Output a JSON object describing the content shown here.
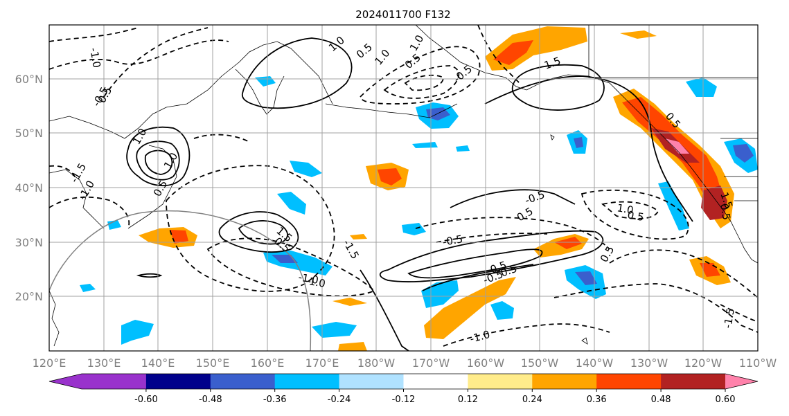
{
  "title": "2024011700 F132",
  "map": {
    "lat_labels": [
      "60°N",
      "50°N",
      "40°N",
      "30°N",
      "20°N"
    ],
    "lon_labels": [
      "120°E",
      "130°E",
      "140°E",
      "150°E",
      "160°E",
      "170°E",
      "180°W",
      "170°W",
      "160°W",
      "150°W",
      "140°W",
      "130°W",
      "120°W",
      "110°W"
    ],
    "contour_labels": [
      "-1.0",
      "0.5",
      "1.0",
      "0.5",
      "1.0",
      "1.0",
      "0.5",
      "1.0",
      "0.5",
      "1.0",
      "-0.5",
      "1.5",
      "0.5",
      "1.5",
      "0.5",
      "-1.5",
      "-1.0",
      "-0.5",
      "1.5",
      "0.5",
      "-1.0",
      "-1.0",
      "-1.5",
      "-0.5",
      "0.5",
      "-0.5",
      "0.5",
      "0.5",
      "0.5",
      "1.0",
      "0.5",
      "-0.5",
      "-1.0",
      "-1.5"
    ],
    "colors": {
      "land_border": "#000000",
      "grid": "#a0a0a0"
    }
  },
  "colorbar": {
    "levels": [
      "-0.60",
      "-0.48",
      "-0.36",
      "-0.24",
      "-0.12",
      "0.12",
      "0.24",
      "0.36",
      "0.48",
      "0.60"
    ],
    "colors": [
      "#9932cc",
      "#00008b",
      "#3a5fcd",
      "#00bfff",
      "#b0e2ff",
      "#ffffff",
      "#ffec8b",
      "#ffa500",
      "#ff4500",
      "#b22222",
      "#ff82ab"
    ]
  }
}
